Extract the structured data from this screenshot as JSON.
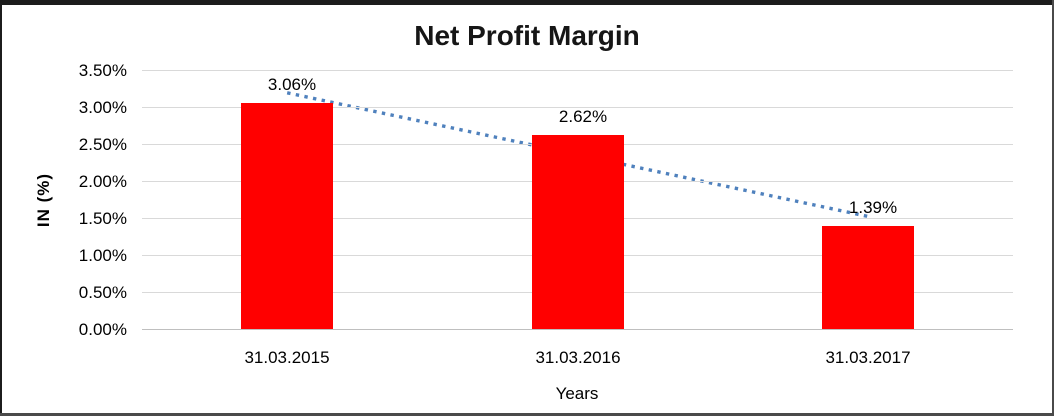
{
  "chart_data": {
    "type": "bar",
    "title": "Net Profit Margin",
    "categories": [
      "31.03.2015",
      "31.03.2016",
      "31.03.2017"
    ],
    "values": [
      3.06,
      2.62,
      1.39
    ],
    "data_labels": [
      "3.06%",
      "2.62%",
      "1.39%"
    ],
    "xlabel": "Years",
    "ylabel": "IN (%)",
    "ylim": [
      0,
      3.5
    ],
    "ytick_step": 0.5,
    "ytick_labels_top_to_bottom": [
      "3.50%",
      "3.00%",
      "2.50%",
      "2.00%",
      "1.50%",
      "1.00%",
      "0.50%",
      "0.00%"
    ],
    "grid": true,
    "legend": "none",
    "trendline": {
      "type": "linear",
      "style": "dotted"
    },
    "colors": {
      "bar": "#ff0000",
      "trendline": "#4f81bd",
      "gridline": "#d9d9d9",
      "axis_line": "#bfbfbf",
      "text": "#000000"
    }
  }
}
